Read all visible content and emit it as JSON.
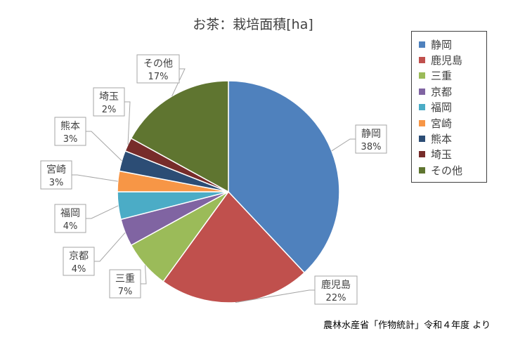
{
  "chart_data": {
    "type": "pie",
    "title": "お茶：栽培面積[ha]",
    "series": [
      {
        "name": "静岡",
        "percent_label": "38%",
        "value": 38,
        "color": "#4f81bd"
      },
      {
        "name": "鹿児島",
        "percent_label": "22%",
        "value": 22,
        "color": "#c0504d"
      },
      {
        "name": "三重",
        "percent_label": "7%",
        "value": 7,
        "color": "#9bbb59"
      },
      {
        "name": "京都",
        "percent_label": "4%",
        "value": 4,
        "color": "#8064a2"
      },
      {
        "name": "福岡",
        "percent_label": "4%",
        "value": 4,
        "color": "#4bacc6"
      },
      {
        "name": "宮崎",
        "percent_label": "3%",
        "value": 3,
        "color": "#f79646"
      },
      {
        "name": "熊本",
        "percent_label": "3%",
        "value": 3,
        "color": "#2c4d75"
      },
      {
        "name": "埼玉",
        "percent_label": "2%",
        "value": 2,
        "color": "#772c2a"
      },
      {
        "name": "その他",
        "percent_label": "17%",
        "value": 17,
        "color": "#5f7530"
      }
    ],
    "legend_position": "right"
  },
  "source_note": "農林水産省「作物統計」令和４年度 より"
}
